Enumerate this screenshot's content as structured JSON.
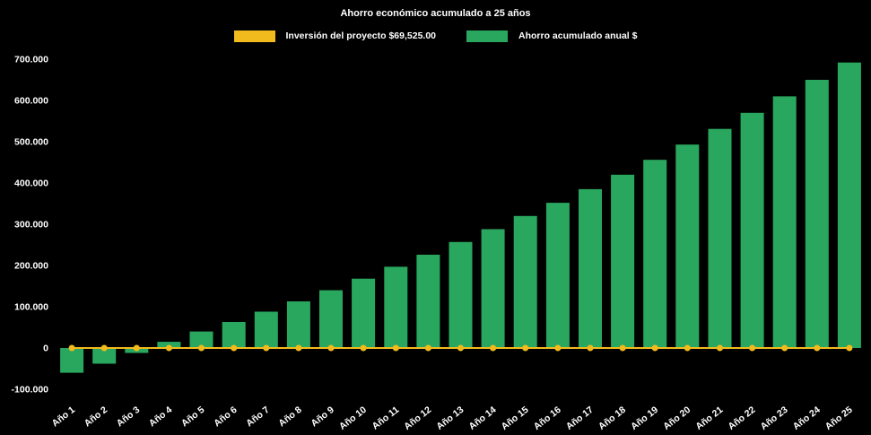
{
  "chart_data": {
    "type": "bar",
    "title": "Ahorro económico acumulado a 25 años",
    "categories": [
      "Año 1",
      "Año 2",
      "Año 3",
      "Año 4",
      "Año 5",
      "Año 6",
      "Año 7",
      "Año 8",
      "Año 9",
      "Año 10",
      "Año 11",
      "Año 12",
      "Año 13",
      "Año 14",
      "Año 15",
      "Año 16",
      "Año 17",
      "Año 18",
      "Año 19",
      "Año 20",
      "Año 21",
      "Año 22",
      "Año 23",
      "Año 24",
      "Año 25"
    ],
    "series": [
      {
        "name": "Inversión del proyecto $69,525.00",
        "type": "line",
        "color": "#f2bb1d",
        "marker_color": "#f2bb1d",
        "values": [
          0,
          0,
          0,
          0,
          0,
          0,
          0,
          0,
          0,
          0,
          0,
          0,
          0,
          0,
          0,
          0,
          0,
          0,
          0,
          0,
          0,
          0,
          0,
          0,
          0
        ]
      },
      {
        "name": "Ahorro acumulado anual $",
        "type": "bar",
        "color": "#2aa75f",
        "values": [
          -60000,
          -38000,
          -12000,
          15000,
          40000,
          63000,
          88000,
          113000,
          140000,
          168000,
          197000,
          226000,
          257000,
          288000,
          320000,
          352000,
          385000,
          420000,
          456000,
          493000,
          531000,
          570000,
          610000,
          650000,
          692000
        ]
      }
    ],
    "ylim": [
      -100000,
      700000
    ],
    "yticks": {
      "values": [
        -100000,
        0,
        100000,
        200000,
        300000,
        400000,
        500000,
        600000,
        700000
      ],
      "labels": [
        "-100.000",
        "0",
        "100.000",
        "200.000",
        "300.000",
        "400.000",
        "500.000",
        "600.000",
        "700.000"
      ]
    },
    "background": "#000000",
    "text_color": "#ffffff",
    "legend_position": "top",
    "grid": "off"
  }
}
